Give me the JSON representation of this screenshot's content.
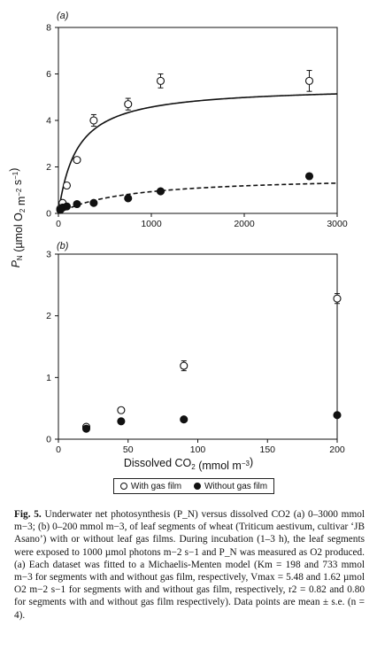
{
  "y_axis_label": "P_N (µmol O2 m−2 s−1)",
  "chart_data": [
    {
      "type": "scatter",
      "panel_label": "(a)",
      "xlim": [
        0,
        3000
      ],
      "ylim": [
        0,
        8
      ],
      "xticks": [
        0,
        1000,
        2000,
        3000
      ],
      "yticks": [
        0,
        2,
        4,
        6,
        8
      ],
      "xlabel": "",
      "grid": false,
      "series": [
        {
          "name": "With gas film",
          "marker": "open-circle",
          "x": [
            20,
            45,
            90,
            200,
            380,
            750,
            1100,
            2700
          ],
          "y": [
            0.2,
            0.45,
            1.2,
            2.3,
            4.0,
            4.7,
            5.7,
            5.7
          ],
          "err": [
            0.05,
            0.05,
            0.1,
            0.1,
            0.25,
            0.25,
            0.3,
            0.45
          ],
          "fit": {
            "model": "Michaelis-Menten",
            "vmax": 5.48,
            "km": 198,
            "style": "solid"
          }
        },
        {
          "name": "Without gas film",
          "marker": "filled-circle",
          "x": [
            20,
            45,
            90,
            200,
            380,
            750,
            1100,
            2700
          ],
          "y": [
            0.15,
            0.25,
            0.3,
            0.4,
            0.45,
            0.65,
            0.95,
            1.6
          ],
          "err": [
            0.03,
            0.03,
            0.04,
            0.05,
            0.05,
            0.06,
            0.07,
            0.1
          ],
          "fit": {
            "model": "Michaelis-Menten",
            "vmax": 1.62,
            "km": 733,
            "style": "dashed"
          }
        }
      ]
    },
    {
      "type": "scatter",
      "panel_label": "(b)",
      "xlim": [
        0,
        200
      ],
      "ylim": [
        0,
        3
      ],
      "xticks": [
        0,
        50,
        100,
        150,
        200
      ],
      "yticks": [
        0,
        1,
        2,
        3
      ],
      "xlabel": "Dissolved CO2 (mmol m−3)",
      "grid": false,
      "series": [
        {
          "name": "With gas film",
          "marker": "open-circle",
          "x": [
            20,
            45,
            90,
            200
          ],
          "y": [
            0.2,
            0.47,
            1.19,
            2.28
          ],
          "err": [
            0.03,
            0.03,
            0.08,
            0.08
          ]
        },
        {
          "name": "Without gas film",
          "marker": "filled-circle",
          "x": [
            20,
            45,
            90,
            200
          ],
          "y": [
            0.17,
            0.29,
            0.32,
            0.39
          ],
          "err": [
            0.02,
            0.02,
            0.02,
            0.03
          ]
        }
      ]
    }
  ],
  "legend": {
    "placement": "below",
    "items": [
      "With gas film",
      "Without gas film"
    ]
  },
  "caption": {
    "fig_label": "Fig. 5.",
    "text": "Underwater net photosynthesis (P_N) versus dissolved CO2 (a) 0–3000 mmol m−3; (b) 0–200 mmol m−3, of leaf segments of wheat (Triticum aestivum, cultivar ‘JB Asano’) with or without leaf gas films. During incubation (1–3 h), the leaf segments were exposed to 1000 µmol photons m−2 s−1 and P_N was measured as O2 produced. (a) Each dataset was fitted to a Michaelis-Menten model (Km = 198 and 733 mmol m−3 for segments with and without gas film, respectively, Vmax = 5.48 and 1.62 µmol O2 m−2 s−1 for segments with and without gas film, respectively, r2 = 0.82 and 0.80 for segments with and without gas film respectively). Data points are mean ± s.e. (n = 4)."
  }
}
